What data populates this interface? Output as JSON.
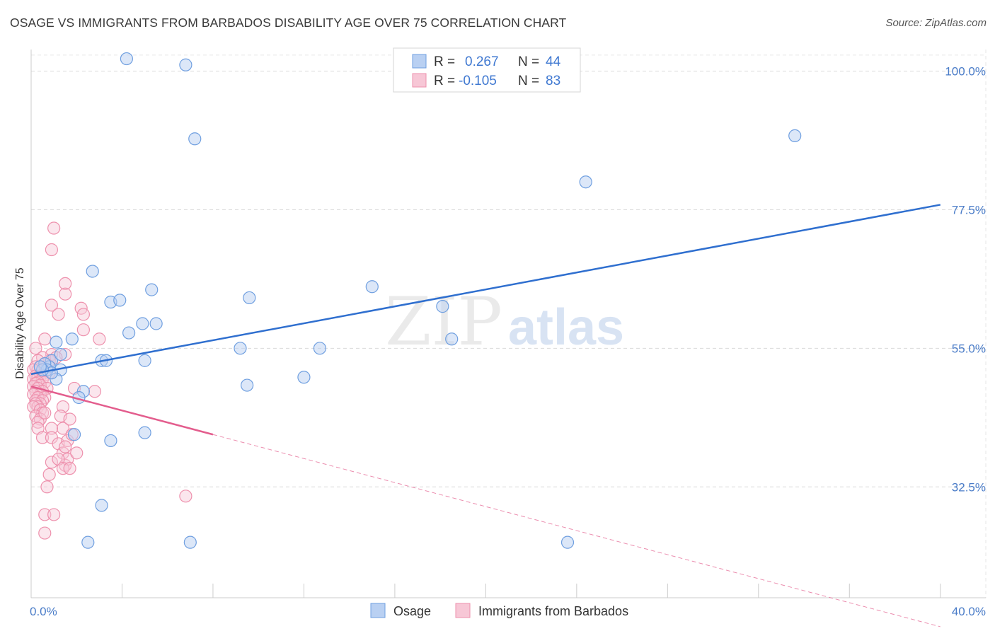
{
  "title": "OSAGE VS IMMIGRANTS FROM BARBADOS DISABILITY AGE OVER 75 CORRELATION CHART",
  "source": "Source: ZipAtlas.com",
  "watermark": {
    "zip": "ZIP",
    "atlas": "atlas"
  },
  "chart_data": {
    "type": "scatter",
    "title": "OSAGE VS IMMIGRANTS FROM BARBADOS DISABILITY AGE OVER 75 CORRELATION CHART",
    "ylabel": "Disability Age Over 75",
    "xlabel": "",
    "xlim": [
      0,
      42
    ],
    "ylim": [
      14.5,
      103.5
    ],
    "x_tick_labels": [
      "0.0%",
      "40.0%"
    ],
    "y_ticks": [
      32.5,
      55.0,
      77.5,
      100.0
    ],
    "y_tick_labels": [
      "32.5%",
      "55.0%",
      "77.5%",
      "100.0%"
    ],
    "grid": true,
    "legend_position": "top-center",
    "legend": [
      {
        "r_label": "R = ",
        "r_value": "0.267",
        "n_label": "N = ",
        "n_value": "44"
      },
      {
        "r_label": "R = ",
        "r_value": "-0.105",
        "n_label": "N = ",
        "n_value": "83"
      }
    ],
    "series": [
      {
        "name": "Osage",
        "color": "#6f9fe0",
        "fill": "#b9d0f2",
        "trend_color": "#2f6fcf",
        "trend": {
          "x": [
            0.0,
            40.0
          ],
          "y": [
            50.8,
            78.3
          ]
        },
        "points": [
          [
            4.2,
            102.0
          ],
          [
            6.8,
            101.0
          ],
          [
            7.2,
            89.0
          ],
          [
            24.4,
            82.0
          ],
          [
            33.6,
            89.5
          ],
          [
            2.7,
            67.5
          ],
          [
            3.5,
            62.5
          ],
          [
            3.9,
            62.8
          ],
          [
            5.3,
            64.5
          ],
          [
            9.6,
            63.2
          ],
          [
            15.0,
            65.0
          ],
          [
            18.1,
            61.8
          ],
          [
            1.1,
            56.0
          ],
          [
            1.8,
            56.5
          ],
          [
            4.3,
            57.5
          ],
          [
            4.9,
            59.0
          ],
          [
            5.5,
            59.0
          ],
          [
            12.7,
            55.0
          ],
          [
            9.2,
            55.0
          ],
          [
            18.5,
            56.5
          ],
          [
            0.9,
            53.0
          ],
          [
            1.3,
            54.0
          ],
          [
            3.1,
            53.0
          ],
          [
            3.3,
            53.0
          ],
          [
            5.0,
            53.0
          ],
          [
            1.3,
            51.5
          ],
          [
            1.1,
            50.0
          ],
          [
            0.8,
            52.0
          ],
          [
            0.6,
            52.5
          ],
          [
            0.7,
            51.5
          ],
          [
            0.9,
            51.0
          ],
          [
            0.5,
            51.5
          ],
          [
            0.4,
            52.0
          ],
          [
            12.0,
            50.3
          ],
          [
            2.3,
            48.0
          ],
          [
            2.1,
            47.0
          ],
          [
            9.5,
            49.0
          ],
          [
            1.9,
            41.0
          ],
          [
            5.0,
            41.3
          ],
          [
            3.5,
            40.0
          ],
          [
            3.1,
            29.5
          ],
          [
            2.5,
            23.5
          ],
          [
            7.0,
            23.5
          ],
          [
            23.6,
            23.5
          ]
        ]
      },
      {
        "name": "Immigrants from Barbados",
        "color": "#ee91ad",
        "fill": "#f7c7d6",
        "trend_color": "#e35d8d",
        "trend": {
          "x": [
            0.0,
            8.0
          ],
          "y": [
            48.8,
            41.0
          ]
        },
        "trend_ext": {
          "x": [
            8.0,
            40.0
          ],
          "y": [
            41.0,
            9.8
          ]
        },
        "points": [
          [
            1.0,
            74.5
          ],
          [
            0.9,
            71.0
          ],
          [
            1.5,
            65.5
          ],
          [
            1.5,
            63.8
          ],
          [
            0.9,
            62.0
          ],
          [
            2.2,
            61.5
          ],
          [
            1.2,
            60.5
          ],
          [
            2.3,
            60.5
          ],
          [
            2.3,
            58.0
          ],
          [
            3.0,
            56.5
          ],
          [
            0.6,
            56.5
          ],
          [
            0.2,
            55.0
          ],
          [
            1.5,
            54.0
          ],
          [
            0.9,
            54.0
          ],
          [
            0.8,
            53.0
          ],
          [
            1.1,
            53.5
          ],
          [
            0.5,
            53.5
          ],
          [
            0.3,
            53.0
          ],
          [
            0.6,
            52.5
          ],
          [
            0.2,
            52.0
          ],
          [
            0.4,
            52.0
          ],
          [
            0.3,
            51.5
          ],
          [
            0.1,
            51.5
          ],
          [
            0.8,
            51.0
          ],
          [
            0.6,
            50.7
          ],
          [
            0.2,
            50.5
          ],
          [
            0.4,
            50.5
          ],
          [
            0.3,
            50.3
          ],
          [
            0.1,
            50.0
          ],
          [
            0.5,
            50.0
          ],
          [
            0.6,
            49.5
          ],
          [
            0.3,
            49.5
          ],
          [
            0.2,
            49.3
          ],
          [
            0.4,
            49.0
          ],
          [
            0.1,
            48.8
          ],
          [
            0.7,
            48.5
          ],
          [
            0.3,
            48.5
          ],
          [
            0.5,
            48.0
          ],
          [
            0.2,
            48.0
          ],
          [
            0.4,
            47.5
          ],
          [
            0.1,
            47.5
          ],
          [
            0.6,
            47.0
          ],
          [
            0.3,
            47.0
          ],
          [
            0.2,
            46.5
          ],
          [
            0.5,
            46.5
          ],
          [
            0.4,
            46.0
          ],
          [
            0.2,
            46.0
          ],
          [
            0.3,
            45.5
          ],
          [
            0.1,
            45.5
          ],
          [
            0.4,
            45.0
          ],
          [
            0.5,
            44.5
          ],
          [
            0.2,
            44.0
          ],
          [
            0.4,
            43.5
          ],
          [
            0.3,
            43.0
          ],
          [
            1.4,
            45.5
          ],
          [
            1.3,
            44.0
          ],
          [
            1.9,
            48.5
          ],
          [
            2.8,
            48.0
          ],
          [
            0.6,
            44.5
          ],
          [
            0.3,
            42.0
          ],
          [
            1.4,
            42.0
          ],
          [
            0.9,
            42.0
          ],
          [
            1.7,
            43.5
          ],
          [
            0.5,
            40.5
          ],
          [
            0.9,
            40.5
          ],
          [
            1.2,
            39.5
          ],
          [
            1.6,
            40.0
          ],
          [
            1.4,
            38.0
          ],
          [
            1.5,
            39.0
          ],
          [
            1.8,
            41.0
          ],
          [
            0.9,
            36.5
          ],
          [
            1.5,
            36.0
          ],
          [
            1.6,
            37.0
          ],
          [
            2.0,
            38.0
          ],
          [
            1.2,
            37.0
          ],
          [
            1.4,
            35.5
          ],
          [
            1.7,
            35.5
          ],
          [
            0.8,
            34.5
          ],
          [
            0.7,
            32.5
          ],
          [
            6.8,
            31.0
          ],
          [
            0.6,
            28.0
          ],
          [
            1.0,
            28.0
          ],
          [
            0.6,
            25.0
          ]
        ]
      }
    ]
  }
}
